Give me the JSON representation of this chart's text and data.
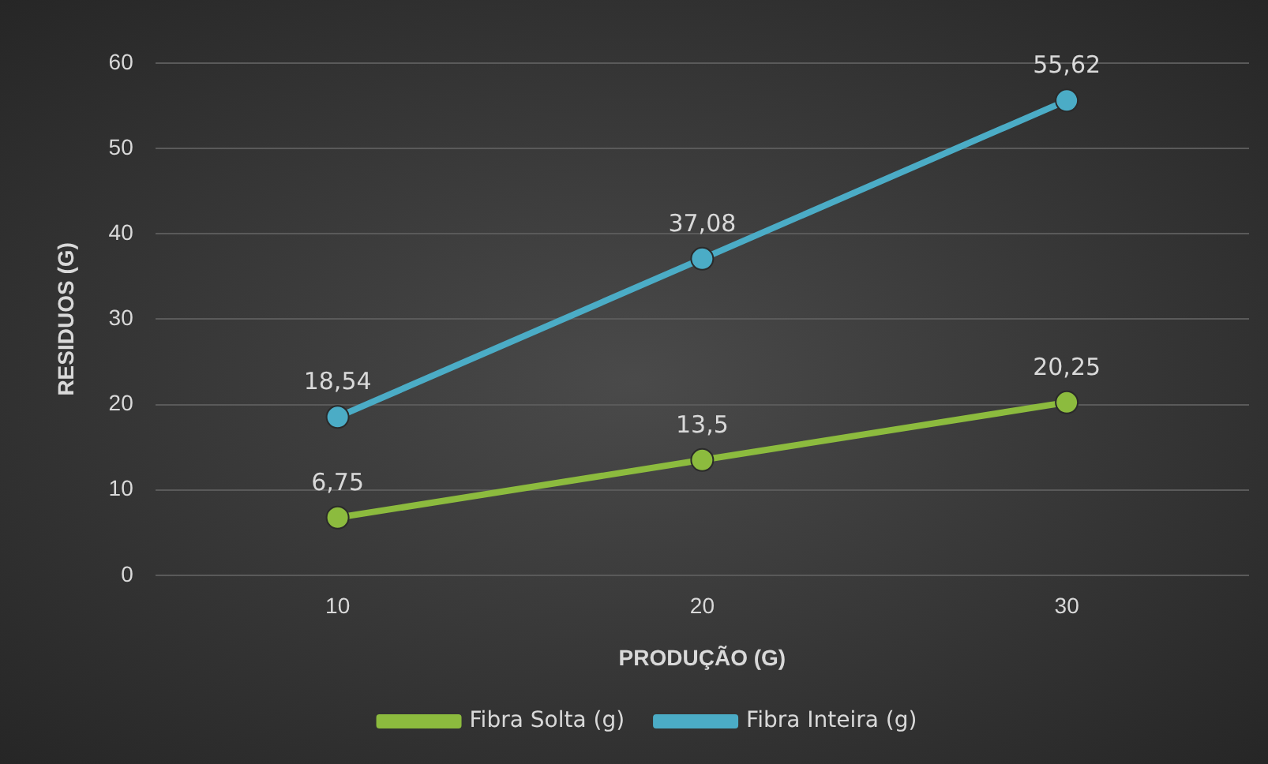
{
  "chart_data": {
    "type": "line",
    "xlabel": "PRODUÇÃO (G)",
    "ylabel": "RESIDUOS (G)",
    "categories": [
      "10",
      "20",
      "30"
    ],
    "series": [
      {
        "name": "Fibra Solta (g)",
        "color": "#8cbb3e",
        "values": [
          6.75,
          13.5,
          20.25
        ],
        "value_labels": [
          "6,75",
          "13,5",
          "20,25"
        ]
      },
      {
        "name": "Fibra Inteira (g)",
        "color": "#4bacc6",
        "values": [
          18.54,
          37.08,
          55.62
        ],
        "value_labels": [
          "18,54",
          "37,08",
          "55,62"
        ]
      }
    ],
    "ylim": [
      0,
      60
    ],
    "yticks": [
      0,
      10,
      20,
      30,
      40,
      50,
      60
    ],
    "grid": "y",
    "legend": "bottom",
    "marker": "circle",
    "line_style": "solid"
  }
}
